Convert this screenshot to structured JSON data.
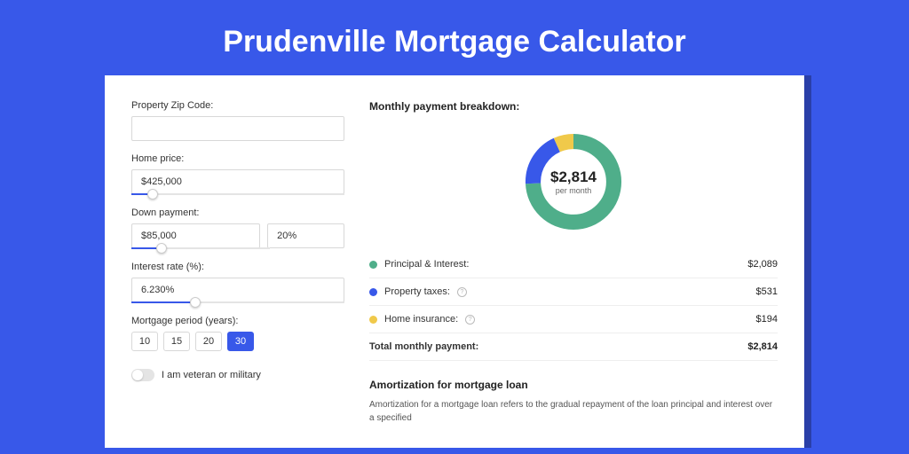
{
  "page": {
    "title": "Prudenville Mortgage Calculator",
    "bg_color": "#3858e9",
    "card_bg": "#ffffff"
  },
  "form": {
    "zip": {
      "label": "Property Zip Code:",
      "value": ""
    },
    "price": {
      "label": "Home price:",
      "value": "$425,000",
      "slider_pct": 10
    },
    "down": {
      "label": "Down payment:",
      "value": "$85,000",
      "pct": "20%",
      "slider_pct": 22
    },
    "rate": {
      "label": "Interest rate (%):",
      "value": "6.230%",
      "slider_pct": 30
    },
    "period": {
      "label": "Mortgage period (years):",
      "options": [
        "10",
        "15",
        "20",
        "30"
      ],
      "selected": "30"
    },
    "veteran": {
      "label": "I am veteran or military",
      "checked": false
    }
  },
  "breakdown": {
    "title": "Monthly payment breakdown:",
    "donut": {
      "value": "$2,814",
      "sub": "per month",
      "slices": [
        {
          "color": "#4fae8a",
          "pct": 74.2
        },
        {
          "color": "#3858e9",
          "pct": 18.9
        },
        {
          "color": "#f0c94a",
          "pct": 6.9
        }
      ],
      "stroke_width": 18
    },
    "rows": [
      {
        "dot": "#4fae8a",
        "label": "Principal & Interest:",
        "info": false,
        "value": "$2,089"
      },
      {
        "dot": "#3858e9",
        "label": "Property taxes:",
        "info": true,
        "value": "$531"
      },
      {
        "dot": "#f0c94a",
        "label": "Home insurance:",
        "info": true,
        "value": "$194"
      }
    ],
    "total": {
      "label": "Total monthly payment:",
      "value": "$2,814"
    }
  },
  "amort": {
    "title": "Amortization for mortgage loan",
    "text": "Amortization for a mortgage loan refers to the gradual repayment of the loan principal and interest over a specified"
  }
}
